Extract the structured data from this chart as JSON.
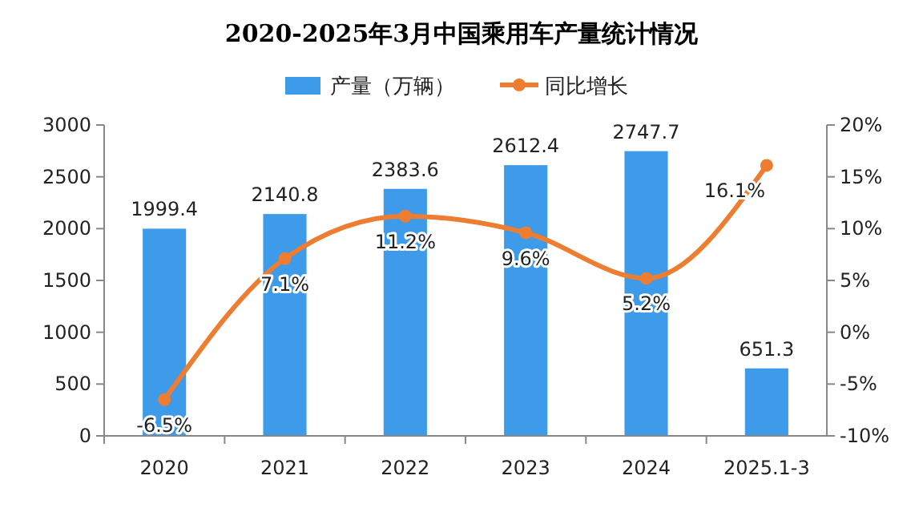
{
  "chart_data": {
    "type": "bar",
    "title": "2020-2025年3月中国乘用车产量统计情况",
    "categories": [
      "2020",
      "2021",
      "2022",
      "2023",
      "2024",
      "2025.1-3"
    ],
    "series": [
      {
        "name": "产量（万辆）",
        "color": "#3d9be9",
        "values": [
          1999.4,
          2140.8,
          2383.6,
          2612.4,
          2747.7,
          651.3
        ],
        "value_labels": [
          "1999.4",
          "2140.8",
          "2383.6",
          "2612.4",
          "2747.7",
          "651.3"
        ]
      },
      {
        "name": "同比增长",
        "type": "line",
        "axis": "y2",
        "color": "#ed7d31",
        "values": [
          -6.5,
          7.1,
          11.2,
          9.6,
          5.2,
          16.1
        ],
        "value_labels": [
          "-6.5%",
          "7.1%",
          "11.2%",
          "9.6%",
          "5.2%",
          "16.1%"
        ]
      }
    ],
    "ylim": [
      0,
      3000
    ],
    "yticks": [
      0,
      500,
      1000,
      1500,
      2000,
      2500,
      3000
    ],
    "y2lim": [
      -10,
      20
    ],
    "y2ticks": [
      {
        "value": -10,
        "label": "-10%"
      },
      {
        "value": -5,
        "label": "-5%"
      },
      {
        "value": 0,
        "label": "0%"
      },
      {
        "value": 5,
        "label": "5%"
      },
      {
        "value": 10,
        "label": "10%"
      },
      {
        "value": 15,
        "label": "15%"
      },
      {
        "value": 20,
        "label": "20%"
      }
    ],
    "legend": "top",
    "marker": "circle",
    "line_style": "solid",
    "grid": false
  }
}
